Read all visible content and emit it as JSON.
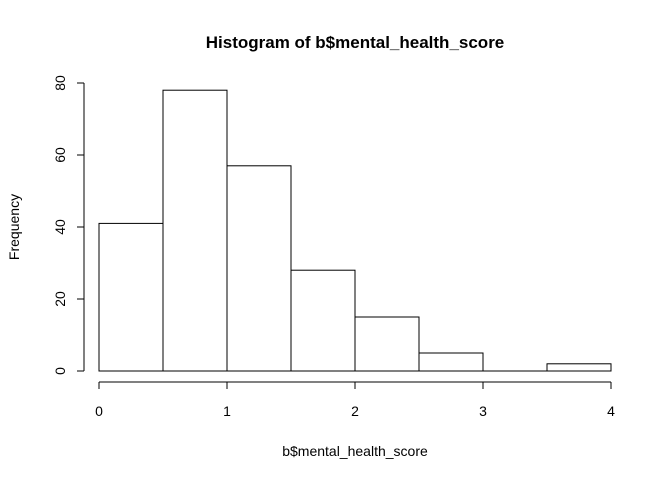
{
  "chart_data": {
    "type": "bar",
    "title": "Histogram of b$mental_health_score",
    "xlabel": "b$mental_health_score",
    "ylabel": "Frequency",
    "bins": [
      {
        "start": 0.0,
        "end": 0.5,
        "count": 41
      },
      {
        "start": 0.5,
        "end": 1.0,
        "count": 78
      },
      {
        "start": 1.0,
        "end": 1.5,
        "count": 57
      },
      {
        "start": 1.5,
        "end": 2.0,
        "count": 28
      },
      {
        "start": 2.0,
        "end": 2.5,
        "count": 15
      },
      {
        "start": 2.5,
        "end": 3.0,
        "count": 5
      },
      {
        "start": 3.0,
        "end": 3.5,
        "count": 0
      },
      {
        "start": 3.5,
        "end": 4.0,
        "count": 2
      }
    ],
    "xlim": [
      0,
      4
    ],
    "ylim": [
      0,
      80
    ],
    "x_ticks": [
      "0",
      "1",
      "2",
      "3",
      "4"
    ],
    "y_ticks": [
      "0",
      "20",
      "40",
      "60",
      "80"
    ],
    "grid": false,
    "legend": "none",
    "bar_fill": "#ffffff",
    "bar_stroke": "#000000"
  }
}
